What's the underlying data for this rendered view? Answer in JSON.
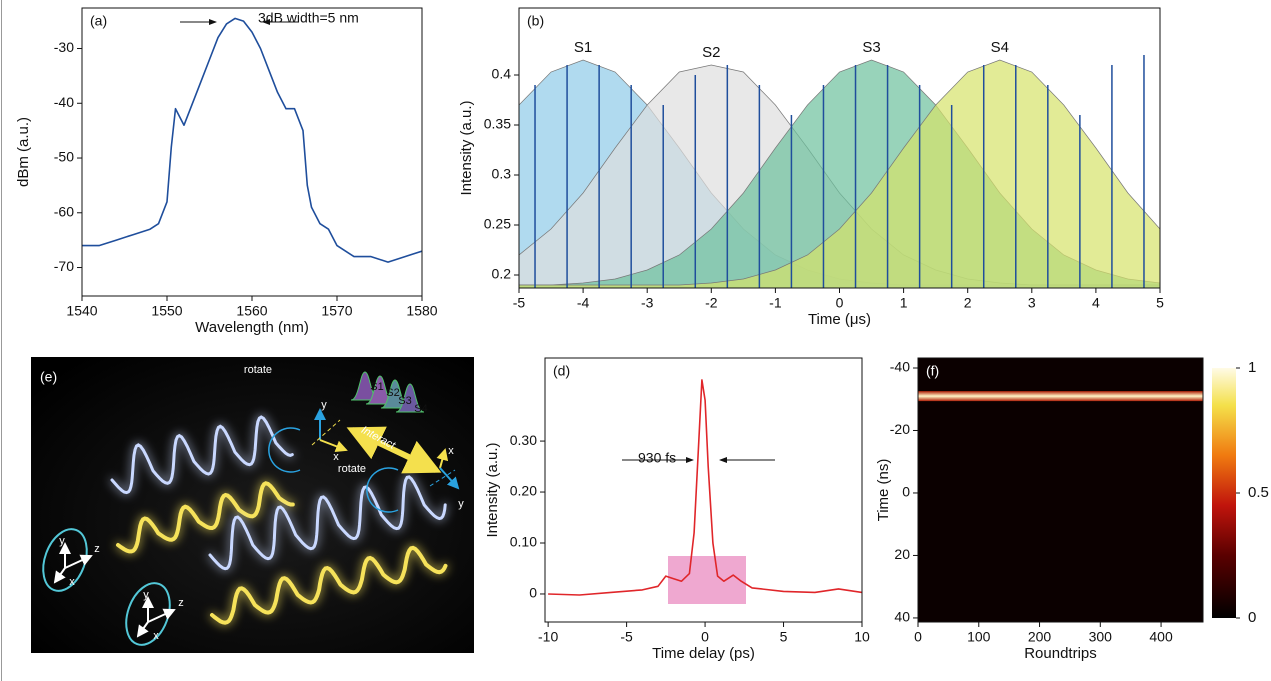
{
  "chart_data": [
    {
      "type": "line",
      "label": "(a)",
      "annotation": "3dB width=5 nm",
      "x": [
        1540,
        1542,
        1544,
        1546,
        1548,
        1549,
        1550,
        1550.5,
        1551,
        1552,
        1553,
        1554,
        1555,
        1556,
        1557,
        1558,
        1559,
        1560,
        1561,
        1562,
        1563,
        1564,
        1565,
        1566,
        1566.5,
        1567,
        1568,
        1569,
        1570,
        1572,
        1574,
        1576,
        1578,
        1580
      ],
      "values": [
        -66,
        -66,
        -65,
        -64,
        -63,
        -62,
        -58,
        -48,
        -41,
        -44,
        -40,
        -36,
        -32,
        -28,
        -25.5,
        -24.5,
        -25,
        -27,
        -30,
        -34,
        -38,
        -41,
        -41,
        -45,
        -55,
        -59,
        -62,
        -63,
        -66,
        -68,
        -68,
        -69,
        -68,
        -67
      ],
      "color": "#1f4e9c",
      "xlim": [
        1540,
        1580
      ],
      "xticks": [
        1540,
        1550,
        1560,
        1570,
        1580
      ],
      "ylim": [
        -75.2,
        -22.6
      ],
      "yticks": [
        -70,
        -60,
        -50,
        -40,
        -30
      ],
      "xlabel": "Wavelength (nm)",
      "ylabel": "dBm (a.u.)"
    },
    {
      "type": "area",
      "label": "(b)",
      "x": [
        -5,
        -4.5,
        -4,
        -3.5,
        -3,
        -2.5,
        -2,
        -1.5,
        -1,
        -0.5,
        0,
        0.5,
        1,
        1.5,
        2,
        2.5,
        3,
        3.5,
        4,
        4.5,
        5
      ],
      "series": [
        {
          "name": "S1",
          "color": "#8ecbe8",
          "values": [
            0.37,
            0.403,
            0.415,
            0.403,
            0.37,
            0.327,
            0.282,
            0.246,
            0.22,
            0.205,
            0.196,
            0.192,
            0.19,
            0.19,
            0.19,
            0.19,
            0.19,
            0.19,
            0.19,
            0.19,
            0.19
          ]
        },
        {
          "name": "S2",
          "color": "#dedede",
          "values": [
            0.22,
            0.246,
            0.282,
            0.327,
            0.37,
            0.403,
            0.41,
            0.403,
            0.37,
            0.327,
            0.282,
            0.246,
            0.22,
            0.205,
            0.196,
            0.192,
            0.19,
            0.19,
            0.19,
            0.19,
            0.19
          ]
        },
        {
          "name": "S3",
          "color": "#6cc09c",
          "values": [
            0.19,
            0.19,
            0.192,
            0.196,
            0.205,
            0.22,
            0.246,
            0.282,
            0.327,
            0.37,
            0.403,
            0.415,
            0.403,
            0.37,
            0.327,
            0.282,
            0.246,
            0.22,
            0.205,
            0.196,
            0.192
          ]
        },
        {
          "name": "S4",
          "color": "#d6e36a",
          "values": [
            0.19,
            0.19,
            0.19,
            0.19,
            0.19,
            0.19,
            0.192,
            0.196,
            0.205,
            0.22,
            0.246,
            0.282,
            0.327,
            0.37,
            0.403,
            0.415,
            0.403,
            0.37,
            0.327,
            0.282,
            0.246
          ]
        }
      ],
      "pulses": {
        "color": "#1f4e9c",
        "x": [
          -4.75,
          -4.25,
          -3.75,
          -3.25,
          -2.75,
          -2.25,
          -1.75,
          -1.25,
          -0.75,
          -0.25,
          0.25,
          0.75,
          1.25,
          1.75,
          2.25,
          2.75,
          3.25,
          3.75,
          4.25,
          4.75
        ],
        "values": [
          0.39,
          0.41,
          0.41,
          0.39,
          0.37,
          0.4,
          0.41,
          0.39,
          0.36,
          0.39,
          0.41,
          0.41,
          0.39,
          0.37,
          0.41,
          0.41,
          0.39,
          0.36,
          0.41,
          0.42
        ]
      },
      "xlim": [
        -5,
        5
      ],
      "xticks": [
        -5,
        -4,
        -3,
        -2,
        -1,
        0,
        1,
        2,
        3,
        4,
        5
      ],
      "ylim": [
        0.187,
        0.467
      ],
      "yticks": [
        0.2,
        0.25,
        0.3,
        0.35,
        0.4
      ],
      "xlabel": "Time (μs)",
      "ylabel": "Intensity (a.u.)"
    },
    {
      "type": "illustration",
      "label": "(e)",
      "texts": [
        "S1",
        "S2",
        "S3",
        "S4",
        "rotate",
        "Interact",
        "rotate",
        "y",
        "x",
        "x",
        "y",
        "y",
        "z",
        "x",
        "y",
        "z",
        "x"
      ]
    },
    {
      "type": "line",
      "label": "(d)",
      "annotation": "930 fs",
      "x": [
        -10,
        -8,
        -6,
        -4,
        -3,
        -2.5,
        -2,
        -1.5,
        -1,
        -0.7,
        -0.4,
        -0.2,
        0,
        0.2,
        0.5,
        0.8,
        1.2,
        1.8,
        2.3,
        3,
        5,
        7,
        8.5,
        10
      ],
      "values": [
        0,
        -0.002,
        0.003,
        0.008,
        0.015,
        0.035,
        0.03,
        0.025,
        0.04,
        0.12,
        0.3,
        0.42,
        0.38,
        0.25,
        0.1,
        0.035,
        0.025,
        0.037,
        0.025,
        0.012,
        0.005,
        0.003,
        0.01,
        0.003
      ],
      "color": "#e0262a",
      "xlim": [
        -10.2,
        10
      ],
      "xticks": [
        -10,
        -5,
        0,
        5,
        10
      ],
      "ylim": [
        -0.055,
        0.463
      ],
      "yticks": [
        0,
        {
          "value": 0.1,
          "label": "0.10"
        },
        {
          "value": 0.2,
          "label": "0.20"
        },
        {
          "value": 0.3,
          "label": "0.30"
        }
      ],
      "xlabel": "Time delay (ps)",
      "ylabel": "Intensity (a.u.)"
    },
    {
      "type": "heatmap",
      "label": "(f)",
      "xlim": [
        0,
        469
      ],
      "xticks": [
        0,
        100,
        200,
        300,
        400
      ],
      "ylim": [
        41.3,
        -43.2
      ],
      "yticks": [
        -40,
        -20,
        0,
        20,
        40
      ],
      "pulse_time": -31,
      "clim": [
        0,
        1
      ],
      "cticks": [
        0,
        0.5,
        1
      ],
      "xlabel": "Roundtrips",
      "ylabel": "Time (ns)"
    }
  ]
}
